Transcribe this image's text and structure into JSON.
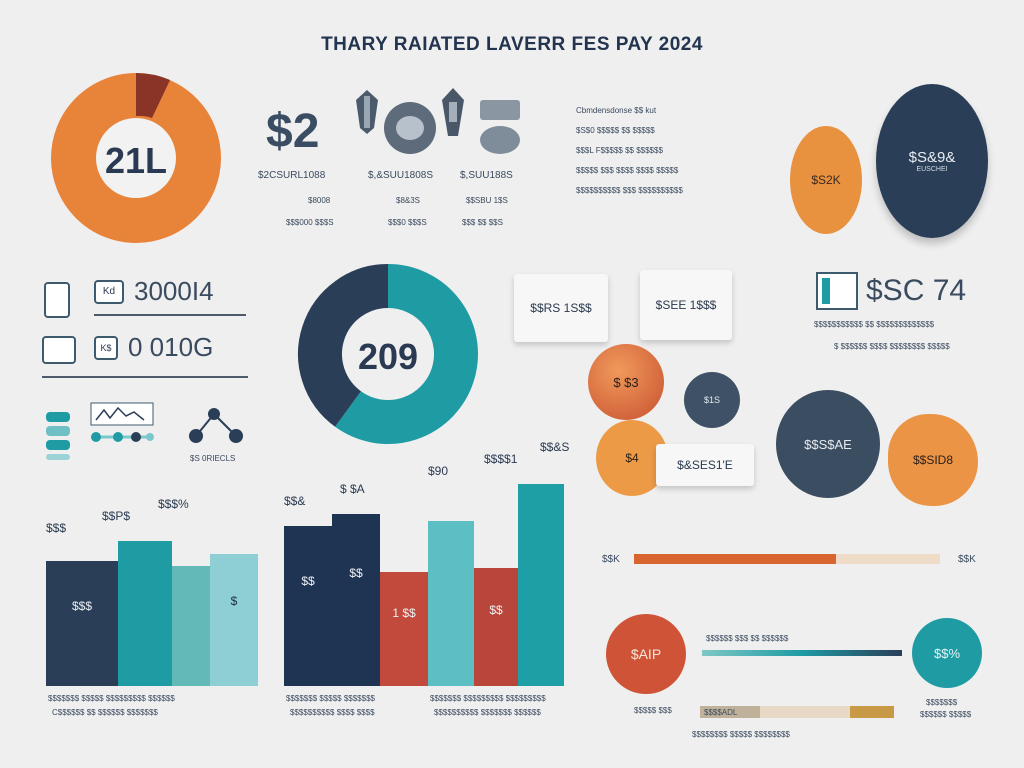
{
  "title": "THARY RAIATED LAVERR FES PAY 2024",
  "donut1": {
    "center": "21L"
  },
  "money": {
    "big": "$2",
    "c1": "$2CSURL1088",
    "c2": "$,&SUU1808S",
    "c3": "$,SUU188S",
    "s1": "$8008",
    "s2": "$8&3S",
    "s3": "$$SBU 1$S",
    "t1": "$$$000 $$$S",
    "t2": "$$$0 $$$S",
    "t3": "$$$ $$ $$S"
  },
  "notes": [
    "Cbmdensdonse $$ kut",
    "$S$0 $$$$$ $$ $$$$$",
    "$$$L F$$$$$ $$ $$$$$$",
    "$$$$$ $$$ $$$$ $$$$ $$$$$",
    "$$$$$$$$$$ $$$ $$$$$$$$$$"
  ],
  "ovals": {
    "small": "$S2K",
    "big": "$S&9&",
    "big_sub": "EUSCHEI"
  },
  "stats": {
    "row1": "3000I4",
    "row2": "0 010G",
    "row1_icon": "Kd",
    "row2_icon": "K$",
    "network_label": "$S 0RIECLS"
  },
  "donut2": {
    "center": "209",
    "segments": [
      0.6,
      0.4
    ],
    "colors": [
      "#1f9ba4",
      "#2a3e57"
    ]
  },
  "cards": {
    "c1": "$$RS 1S$$",
    "c2": "$SEE 1$$$"
  },
  "right_stat": {
    "value": "$SC 74",
    "line1": "$$$$$$$$$$$ $$ $$$$$$$$$$$$$",
    "line2": "$ $$$$$$ $$$$ $$$$$$$$ $$$$$"
  },
  "spheres": {
    "s1": "$ $3",
    "s2": "$1S",
    "s3": "$4",
    "card": "$&SES1'E",
    "dark": "$$S$AE",
    "orange": "$$SID8"
  },
  "progress1": {
    "left": "$$K",
    "right": "$$K"
  },
  "progress2": {
    "circle_left": "$AIP",
    "circle_right": "$$%",
    "label_top": "$$$$$$ $$$ $$ $$$$$$",
    "label_left": "$$$$$ $$$",
    "bar_label": "$$$$ADL",
    "foot": "$$$$$$$$ $$$$$ $$$$$$$$",
    "right_sub1": "$$$$$$$",
    "right_sub2": "$$$$$$ $$$$$"
  },
  "chart_data": {
    "type": "bar",
    "groups": [
      {
        "labels_top": [
          "$$$",
          "$$P$",
          "$$$%"
        ],
        "values": [
          125,
          145,
          120,
          132
        ],
        "inner": [
          "$$$",
          "",
          "",
          "$"
        ],
        "colors": [
          "#2a3e57",
          "#1f9ba4",
          "#62b9b5",
          "#8dcfd4"
        ],
        "caption1": "$$$$$$$ $$$$$ $$$$$$$$$ $$$$$$",
        "caption2": "C$$$$$$ $$ $$$$$$ $$$$$$$"
      },
      {
        "labels_top": [
          "$$&",
          "$ $A"
        ],
        "values": [
          160,
          172,
          114
        ],
        "inner": [
          "$$",
          "$$",
          "1 $$"
        ],
        "colors": [
          "#1f3452",
          "#1f3452",
          "#c24a3c"
        ],
        "caption1": "$$$$$$$ $$$$$ $$$$$$$",
        "caption2": "$$$$$$$$$$ $$$$ $$$$"
      },
      {
        "labels_top": [
          "$90",
          "$$$$1",
          "$$&S"
        ],
        "values": [
          165,
          118,
          202
        ],
        "inner": [
          "",
          "$$",
          ""
        ],
        "colors": [
          "#5cbfc3",
          "#b8463a",
          "#1e9fa6"
        ],
        "caption1": "$$$$$$$ $$$$$$$$$ $$$$$$$$$",
        "caption2": "$$$$$$$$$$ $$$$$$$ $$$$$$"
      }
    ],
    "accent": "#e8833a"
  }
}
